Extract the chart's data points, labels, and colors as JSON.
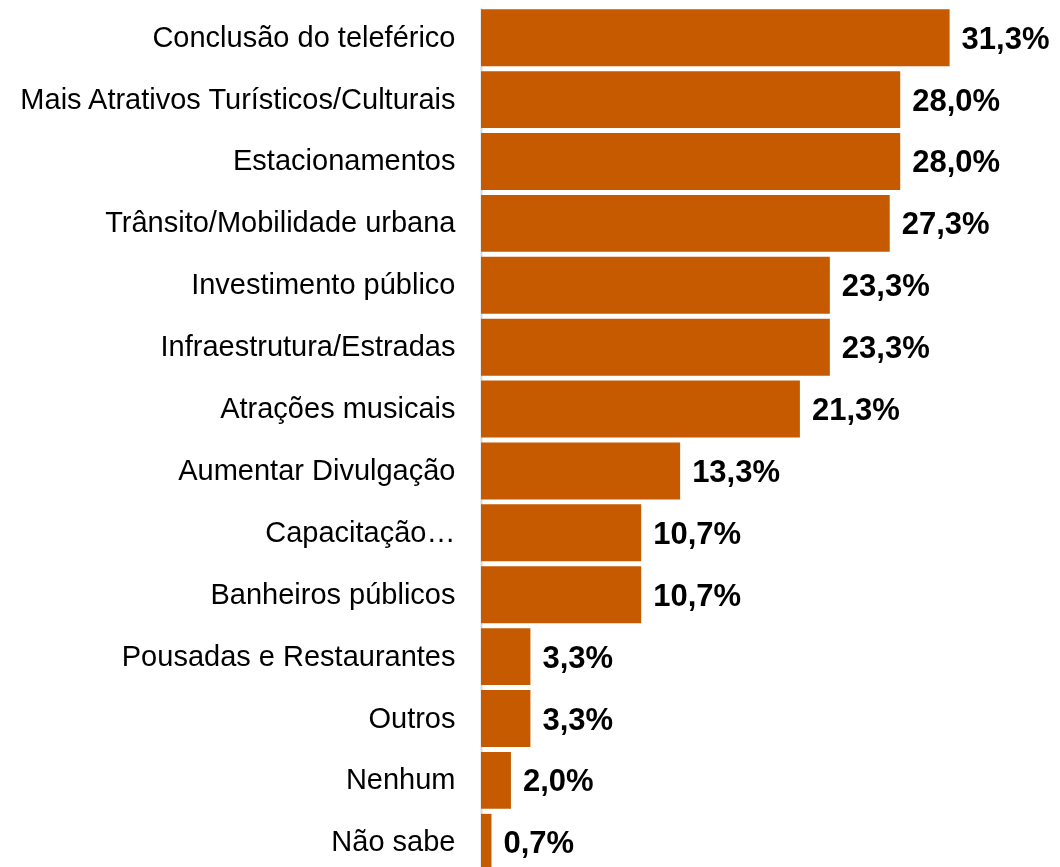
{
  "chart_data": {
    "type": "bar",
    "orientation": "horizontal",
    "categories": [
      "Conclusão do teleférico",
      "Mais Atrativos Turísticos/Culturais",
      "Estacionamentos",
      "Trânsito/Mobilidade urbana",
      "Investimento público",
      "Infraestrutura/Estradas",
      "Atrações musicais",
      "Aumentar Divulgação",
      "Capacitação…",
      "Banheiros públicos",
      "Pousadas e Restaurantes",
      "Outros",
      "Nenhum",
      "Não sabe"
    ],
    "values": [
      31.3,
      28.0,
      28.0,
      27.3,
      23.3,
      23.3,
      21.3,
      13.3,
      10.7,
      10.7,
      3.3,
      3.3,
      2.0,
      0.7
    ],
    "value_labels": [
      "31,3%",
      "28,0%",
      "28,0%",
      "27,3%",
      "23,3%",
      "23,3%",
      "21,3%",
      "13,3%",
      "10,7%",
      "10,7%",
      "3,3%",
      "3,3%",
      "2,0%",
      "0,7%"
    ],
    "color": "#c55a00",
    "grid": false
  }
}
